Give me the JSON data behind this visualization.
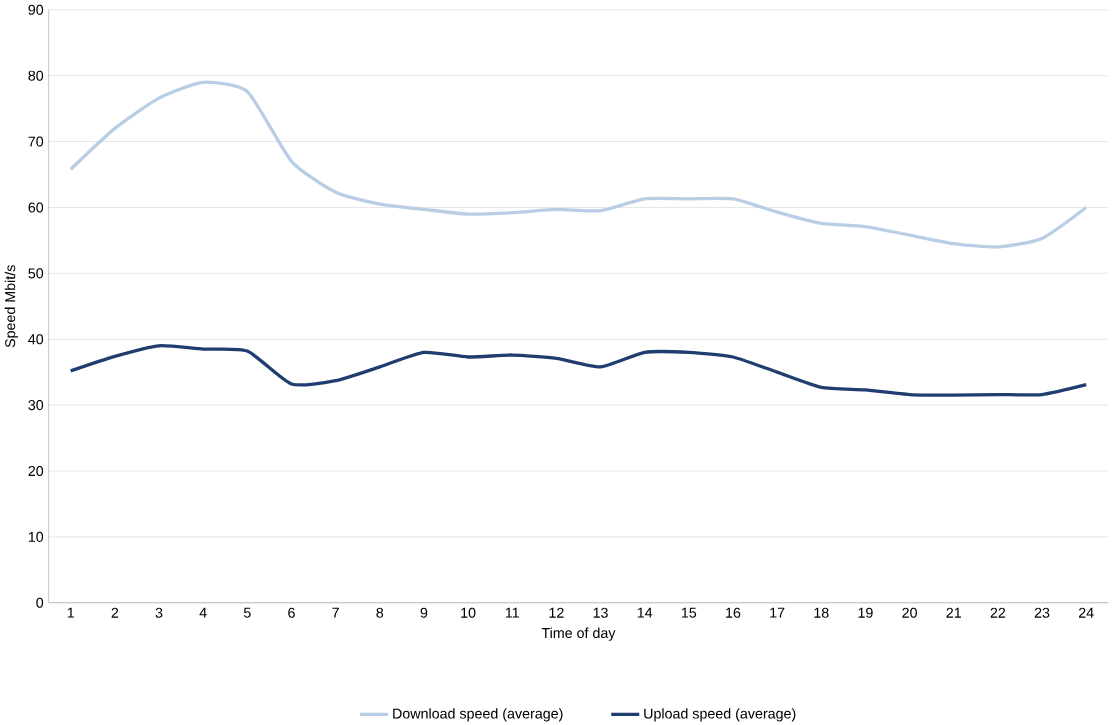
{
  "chart_data": {
    "type": "line",
    "xlabel": "Time of day",
    "ylabel": "Speed Mbit/s",
    "categories": [
      "1",
      "2",
      "3",
      "4",
      "5",
      "6",
      "7",
      "8",
      "9",
      "10",
      "11",
      "12",
      "13",
      "14",
      "15",
      "16",
      "17",
      "18",
      "19",
      "20",
      "21",
      "22",
      "23",
      "24"
    ],
    "series": [
      {
        "name": "Download speed (average)",
        "color": "#b9cde5",
        "values": [
          65.8,
          72,
          76.6,
          79,
          77.6,
          67,
          62.3,
          60.5,
          59.7,
          59,
          59.2,
          59.7,
          59.5,
          61.3,
          61.3,
          61.3,
          59.3,
          57.6,
          57.1,
          55.8,
          54.5,
          54,
          55.3,
          60
        ]
      },
      {
        "name": "Upload speed (average)",
        "color": "#1f3d6e",
        "values": [
          35.2,
          37.4,
          39,
          38.5,
          38.2,
          33.2,
          33.7,
          35.8,
          38,
          37.3,
          37.6,
          37.1,
          35.8,
          38,
          38,
          37.3,
          35,
          32.7,
          32.3,
          31.6,
          31.5,
          31.6,
          31.6,
          33.1
        ]
      }
    ],
    "ylim": [
      0,
      90
    ],
    "yticks": [
      0,
      10,
      20,
      30,
      40,
      50,
      60,
      70,
      80,
      90
    ],
    "grid": "y",
    "legend": "bottom"
  }
}
